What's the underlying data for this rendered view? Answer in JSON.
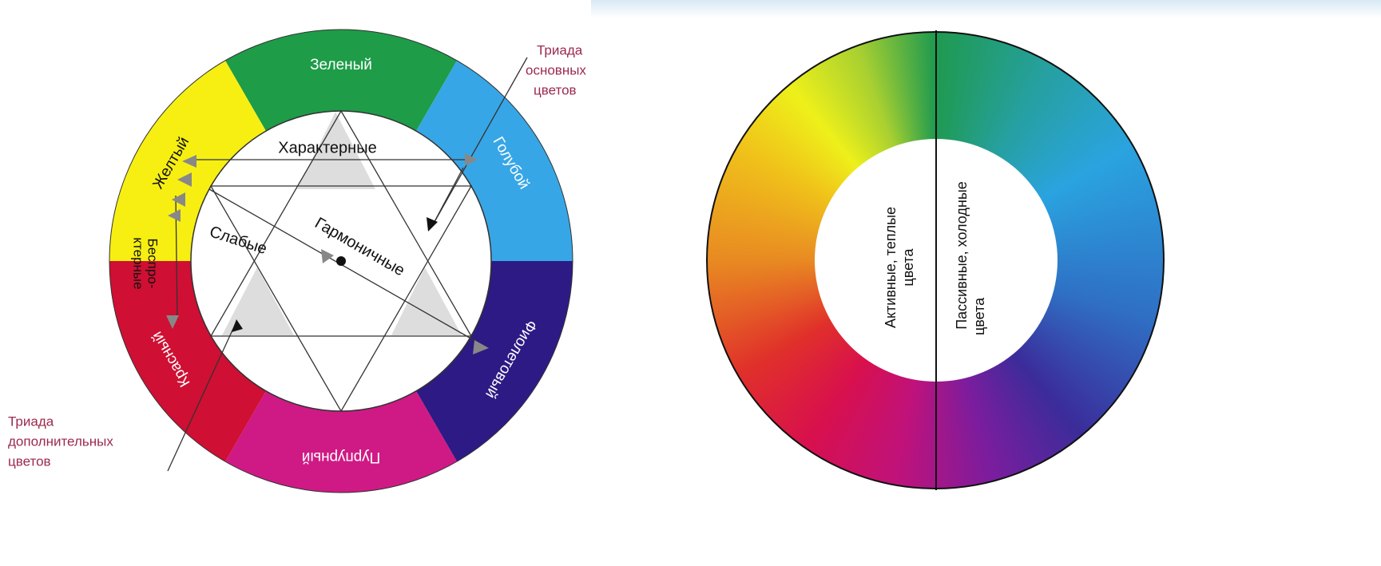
{
  "left_wheel": {
    "segments": [
      "Зеленый",
      "Голубой",
      "Фиолетовый",
      "Пурпурный",
      "Красный",
      "Желтый"
    ],
    "inner_labels": [
      "Характерные",
      "Слабые",
      "Гармоничные"
    ],
    "side_label": [
      "Беспро-",
      "ктерные"
    ],
    "callout_primary": [
      "Триада",
      "основных",
      "цветов"
    ],
    "callout_secondary": [
      "Триада",
      "дополнительных",
      "цветов"
    ]
  },
  "right_wheel": {
    "warm_label": [
      "Активные, теплые",
      "цвета"
    ],
    "cold_label": [
      "Пассивные, холодные",
      "цвета"
    ]
  }
}
